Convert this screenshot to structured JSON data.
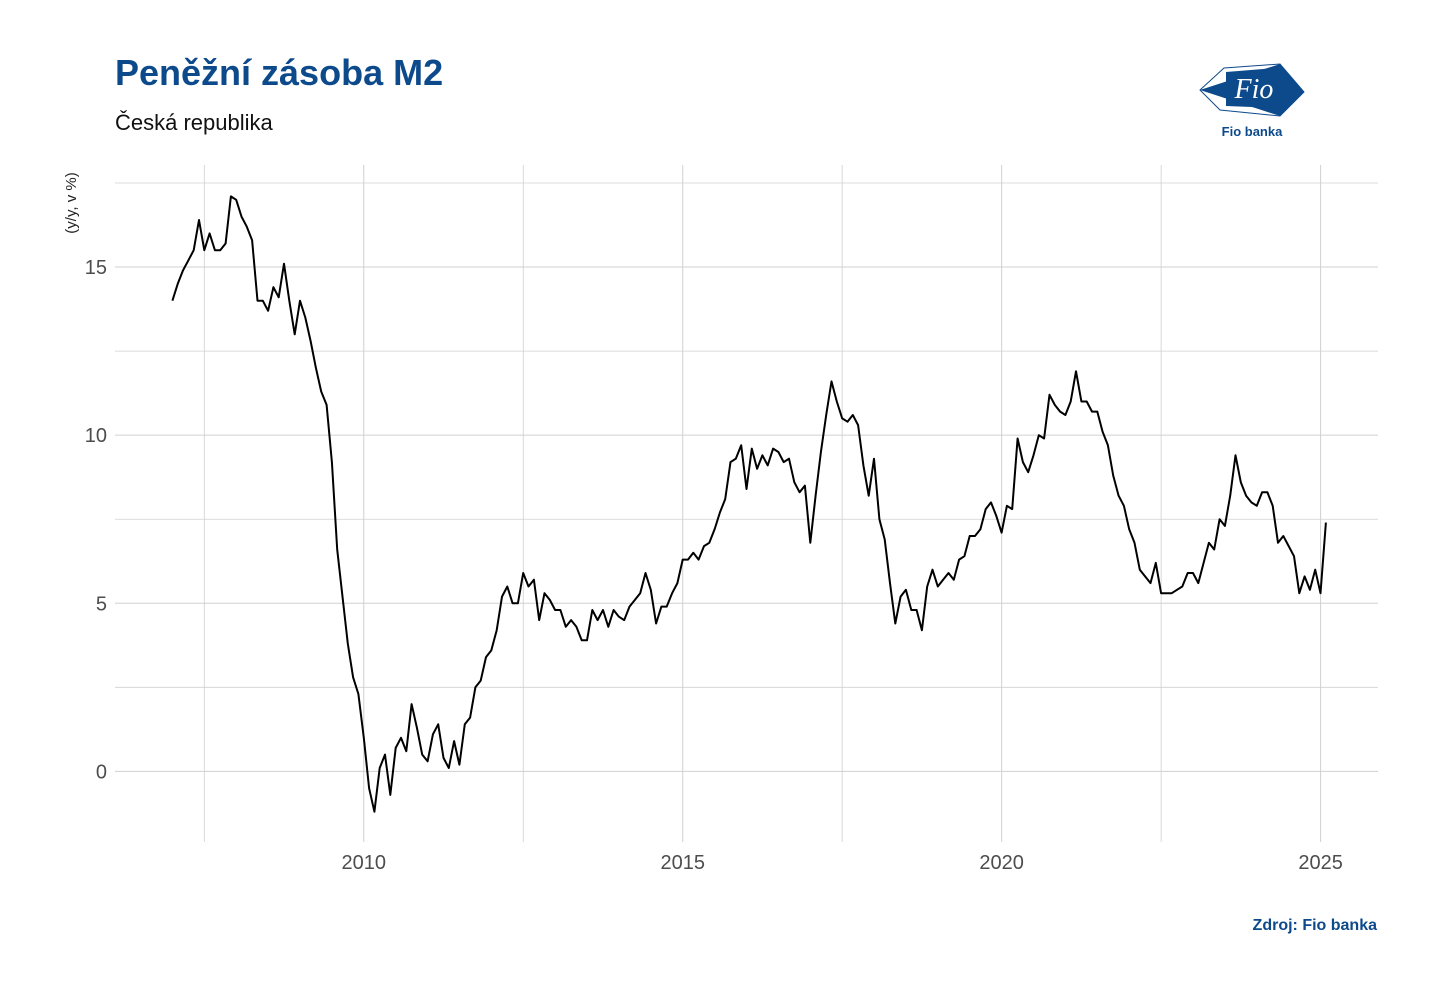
{
  "header": {
    "title": "Peněžní zásoba M2",
    "subtitle": "Česká republika"
  },
  "logo": {
    "label": "Fio banka",
    "mark_text": "Fio",
    "color": "#0d4a8c",
    "icon": "fio-flag-icon"
  },
  "footer": {
    "source": "Zdroj: Fio banka"
  },
  "colors": {
    "accent": "#0d4a8c",
    "line": "#000000",
    "grid": "#d0d0d0"
  },
  "chart_data": {
    "type": "line",
    "title": "",
    "xlabel": "",
    "ylabel": "(y/y, v %)",
    "xlim": [
      2006.1,
      2025.9
    ],
    "ylim": [
      -2.1,
      17.5
    ],
    "grid": true,
    "legend": "none",
    "x_ticks": [
      2010,
      2015,
      2020,
      2025
    ],
    "x_tick_labels": [
      "2010",
      "2015",
      "2020",
      "2025"
    ],
    "x_minor_gridlines": [
      2007.5,
      2012.5,
      2017.5,
      2022.5
    ],
    "y_ticks": [
      0,
      5,
      10,
      15
    ],
    "y_tick_labels": [
      "0",
      "5",
      "10",
      "15"
    ],
    "y_minor_gridlines": [
      2.5,
      7.5,
      12.5
    ],
    "series": [
      {
        "start": 2007.0,
        "step": 0.08333,
        "values": [
          14.0,
          14.5,
          14.9,
          15.2,
          15.5,
          16.4,
          15.5,
          16.0,
          15.5,
          15.5,
          15.7,
          17.1,
          17.0,
          16.5,
          16.2,
          15.8,
          14.0,
          14.0,
          13.7,
          14.4,
          14.1,
          15.1,
          14.0,
          13.0,
          14.0,
          13.5,
          12.8,
          12.0,
          11.3,
          10.9,
          9.2,
          6.6,
          5.2,
          3.8,
          2.8,
          2.3,
          1.0,
          -0.5,
          -1.2,
          0.1,
          0.5,
          -0.7,
          0.7,
          1.0,
          0.6,
          2.0,
          1.3,
          0.5,
          0.3,
          1.1,
          1.4,
          0.4,
          0.1,
          0.9,
          0.2,
          1.4,
          1.6,
          2.5,
          2.7,
          3.4,
          3.6,
          4.2,
          5.2,
          5.5,
          5.0,
          5.0,
          5.9,
          5.5,
          5.7,
          4.5,
          5.3,
          5.1,
          4.8,
          4.8,
          4.3,
          4.5,
          4.3,
          3.9,
          3.9,
          4.8,
          4.5,
          4.8,
          4.3,
          4.8,
          4.6,
          4.5,
          4.9,
          5.1,
          5.3,
          5.9,
          5.4,
          4.4,
          4.9,
          4.9,
          5.3,
          5.6,
          6.3,
          6.3,
          6.5,
          6.3,
          6.7,
          6.8,
          7.2,
          7.7,
          8.1,
          9.2,
          9.3,
          9.7,
          8.4,
          9.6,
          9.0,
          9.4,
          9.1,
          9.6,
          9.5,
          9.2,
          9.3,
          8.6,
          8.3,
          8.5,
          6.8,
          8.2,
          9.5,
          10.6,
          11.6,
          11.0,
          10.5,
          10.4,
          10.6,
          10.3,
          9.1,
          8.2,
          9.3,
          7.5,
          6.9,
          5.6,
          4.4,
          5.2,
          5.4,
          4.8,
          4.8,
          4.2,
          5.5,
          6.0,
          5.5,
          5.7,
          5.9,
          5.7,
          6.3,
          6.4,
          7.0,
          7.0,
          7.2,
          7.8,
          8.0,
          7.6,
          7.1,
          7.9,
          7.8,
          9.9,
          9.2,
          8.9,
          9.4,
          10.0,
          9.9,
          11.2,
          10.9,
          10.7,
          10.6,
          11.0,
          11.9,
          11.0,
          11.0,
          10.7,
          10.7,
          10.1,
          9.7,
          8.8,
          8.2,
          7.9,
          7.2,
          6.8,
          6.0,
          5.8,
          5.6,
          6.2,
          5.3,
          5.3,
          5.3,
          5.4,
          5.5,
          5.9,
          5.9,
          5.6,
          6.2,
          6.8,
          6.6,
          7.5,
          7.3,
          8.2,
          9.4,
          8.6,
          8.2,
          8.0,
          7.9,
          8.3,
          8.3,
          7.9,
          6.8,
          7.0,
          6.7,
          6.4,
          5.3,
          5.8,
          5.4,
          6.0,
          5.3,
          7.4
        ]
      }
    ]
  }
}
